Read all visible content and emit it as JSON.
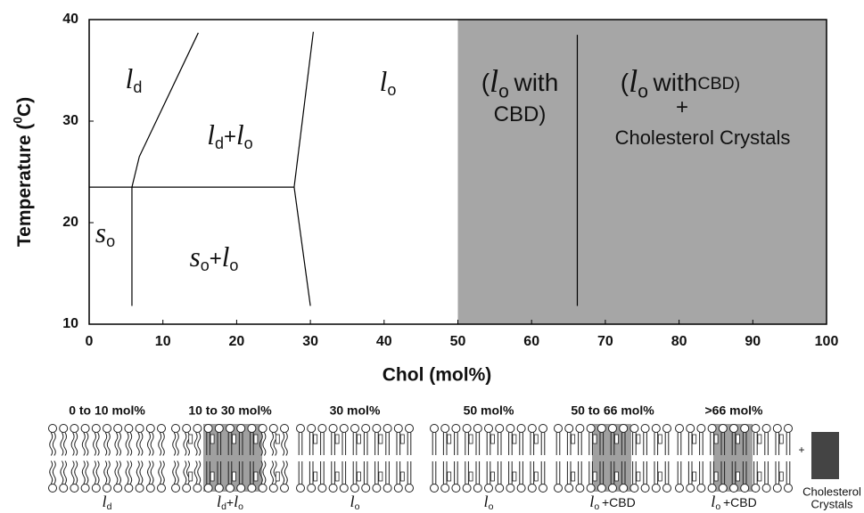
{
  "chart_data": {
    "type": "phase",
    "xlabel": "Chol (mol%)",
    "ylabel": [
      {
        "text": "Temperature ("
      },
      {
        "text": "0",
        "sup": true
      },
      {
        "text": "C)"
      }
    ],
    "xlim": [
      0,
      100
    ],
    "ylim": [
      10,
      40
    ],
    "xticks": [
      0,
      10,
      20,
      30,
      40,
      50,
      60,
      70,
      80,
      90,
      100
    ],
    "yticks": [
      10,
      20,
      30,
      40
    ],
    "shaded": {
      "xlim": [
        50,
        100
      ],
      "color": "#a6a6a6"
    },
    "boundaries": [
      {
        "x": [
          5.8,
          6.8,
          14.8
        ],
        "y": [
          23.5,
          26.5,
          38.7
        ]
      },
      {
        "x": [
          0,
          27.8
        ],
        "y": [
          23.5,
          23.5
        ]
      },
      {
        "x": [
          5.8,
          5.8
        ],
        "y": [
          11.8,
          23.5
        ]
      },
      {
        "x": [
          27.8,
          30.4
        ],
        "y": [
          23.5,
          38.8
        ]
      },
      {
        "x": [
          27.8,
          30.0
        ],
        "y": [
          23.5,
          11.8
        ]
      },
      {
        "x": [
          66.2,
          66.2
        ],
        "y": [
          11.8,
          38.5
        ]
      }
    ],
    "regions": [
      [
        {
          "text": "l",
          "italic": true
        },
        {
          "text": "d",
          "sub": true
        }
      ],
      [
        {
          "text": "l",
          "italic": true
        },
        {
          "text": "d",
          "sub": true
        },
        {
          "text": "+"
        },
        {
          "text": "l",
          "italic": true
        },
        {
          "text": "o",
          "sub": true
        }
      ],
      [
        {
          "text": "l",
          "italic": true
        },
        {
          "text": "o",
          "sub": true
        }
      ],
      [
        {
          "text": "("
        },
        {
          "text": "l",
          "italic": true
        },
        {
          "text": "o",
          "sub": true
        },
        {
          "text": "with"
        }
      ],
      [
        {
          "text": "CBD)"
        }
      ],
      [
        {
          "text": "("
        },
        {
          "text": "l",
          "italic": true
        },
        {
          "text": "o",
          "sub": true
        },
        {
          "text": "with"
        },
        {
          "text": "CBD)",
          "small": true
        }
      ],
      [
        {
          "text": "+"
        }
      ],
      [
        {
          "text": "Cholesterol Crystals"
        }
      ],
      [
        {
          "text": "s",
          "italic": true
        },
        {
          "text": "o",
          "sub": true
        }
      ],
      [
        {
          "text": "s",
          "italic": true
        },
        {
          "text": "o",
          "sub": true
        },
        {
          "text": "+"
        },
        {
          "text": "l",
          "italic": true
        },
        {
          "text": "o",
          "sub": true
        }
      ]
    ]
  },
  "schematics": {
    "panels": [
      {
        "title": "0 to 10 mol%",
        "label": [
          {
            "text": "l",
            "italic": true
          },
          {
            "text": "d",
            "sub": true
          }
        ]
      },
      {
        "title": "10 to 30 mol%",
        "label": [
          {
            "text": "l",
            "italic": true
          },
          {
            "text": "d",
            "sub": true
          },
          {
            "text": "+"
          },
          {
            "text": "l",
            "italic": true
          },
          {
            "text": "o",
            "sub": true
          }
        ]
      },
      {
        "title": "30 mol%",
        "label": [
          {
            "text": "l",
            "italic": true
          },
          {
            "text": "o",
            "sub": true
          }
        ]
      },
      {
        "title": "50 mol%",
        "label": [
          {
            "text": "l",
            "italic": true
          },
          {
            "text": "o",
            "sub": true
          }
        ]
      },
      {
        "title": "50 to 66 mol%",
        "label": [
          {
            "text": "l",
            "italic": true
          },
          {
            "text": "o",
            "sub": true
          },
          {
            "text": "+CBD"
          }
        ]
      },
      {
        "title": ">66 mol%",
        "label": [
          {
            "text": "l",
            "italic": true
          },
          {
            "text": "o",
            "sub": true
          },
          {
            "text": "+CBD"
          }
        ]
      }
    ],
    "plus": "+",
    "crystals": [
      "Cholesterol",
      "Crystals"
    ]
  }
}
